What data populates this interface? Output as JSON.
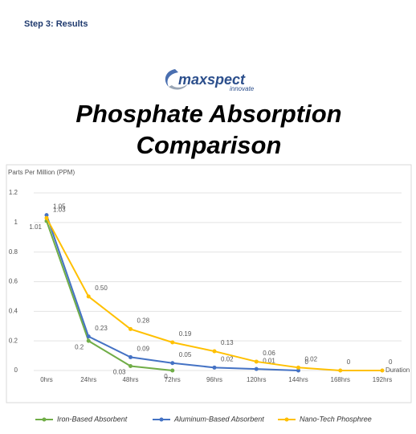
{
  "header": "Step 3: Results",
  "logo": {
    "name": "maxspect",
    "tagline": "innovate"
  },
  "chart_data": {
    "type": "line",
    "title": "Phosphate Absorption Comparison",
    "y_label": "Parts Per Million (PPM)",
    "x_label": "Duration",
    "categories": [
      "0hrs",
      "24hrs",
      "48hrs",
      "72hrs",
      "96hrs",
      "120hrs",
      "144hrs",
      "168hrs",
      "192hrs"
    ],
    "ylim": [
      0,
      1.2
    ],
    "yticks": [
      0,
      0.2,
      0.4,
      0.6,
      0.8,
      1,
      1.2
    ],
    "grid": true,
    "series": [
      {
        "name": "Iron-Based Absorbent",
        "color": "#70ad47",
        "values": [
          1.01,
          0.2,
          0.03,
          0,
          null,
          null,
          null,
          null,
          null
        ]
      },
      {
        "name": "Aluminum-Based Absorbent",
        "color": "#4472c4",
        "values": [
          1.05,
          0.23,
          0.09,
          0.05,
          0.02,
          0.01,
          0,
          null,
          null
        ]
      },
      {
        "name": "Nano-Tech Phosphree",
        "color": "#ffc000",
        "values": [
          1.03,
          0.5,
          0.28,
          0.19,
          0.13,
          0.06,
          0.02,
          0,
          0
        ],
        "value_labels": [
          "1.03",
          "0.50",
          "0.28",
          "0.19",
          "0.13",
          "0.06",
          "0.02",
          "0",
          "0"
        ]
      }
    ]
  }
}
